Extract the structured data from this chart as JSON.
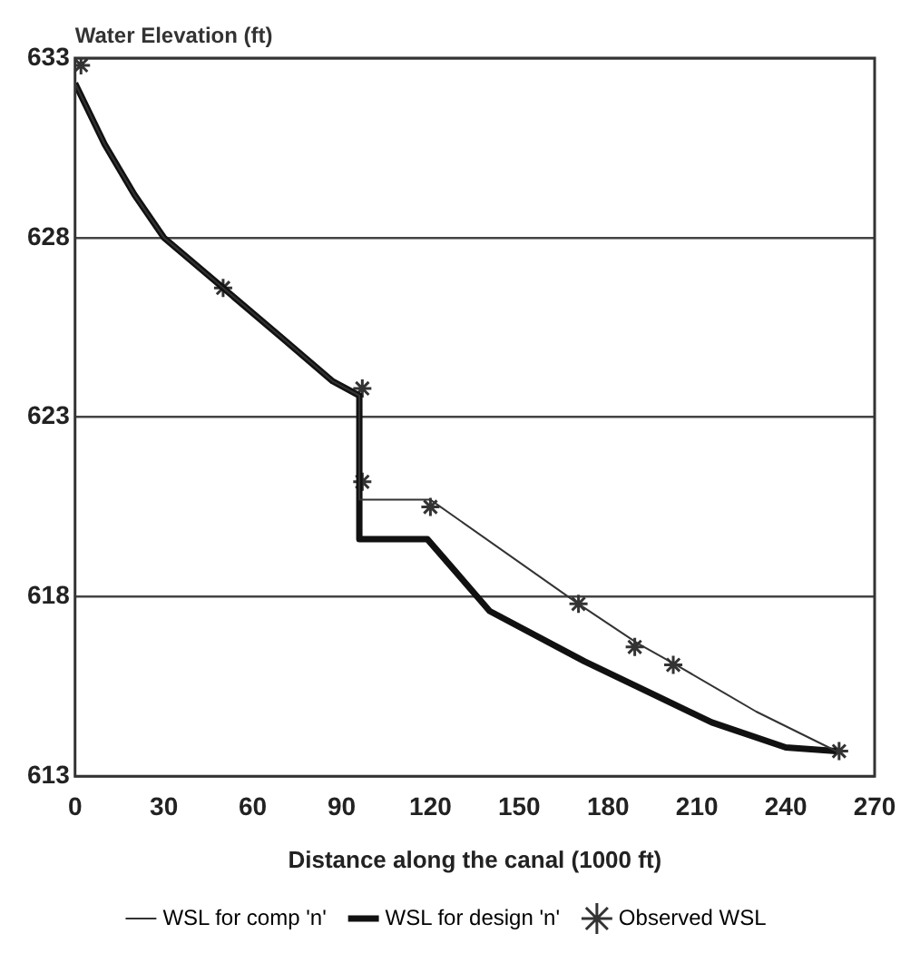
{
  "chart_data": {
    "type": "line",
    "ylabel": "Water Elevation (ft)",
    "xlabel": "Distance along the canal (1000 ft)",
    "xlim": [
      0,
      270
    ],
    "xticks": [
      0,
      30,
      60,
      90,
      120,
      150,
      180,
      210,
      240,
      270
    ],
    "ylim": [
      613,
      633
    ],
    "yticks": [
      613,
      618,
      623,
      628,
      633
    ],
    "grid": "y",
    "legend": "bottom",
    "marker": "none",
    "line_style": "solid",
    "series": [
      {
        "name": "WSL for comp 'n'",
        "color": "#333333",
        "x": [
          0,
          10,
          20,
          30,
          50,
          70,
          87,
          96,
          96,
          120,
          170,
          190,
          203,
          230,
          257
        ],
        "values": [
          632.3,
          630.6,
          629.2,
          628,
          626.6,
          625.2,
          624,
          623.6,
          620.7,
          620.7,
          617.8,
          616.7,
          616.1,
          614.8,
          613.7
        ]
      },
      {
        "name": "WSL for design 'n'",
        "color": "#111111",
        "x": [
          0,
          10,
          20,
          30,
          50,
          70,
          87,
          96,
          96,
          119,
          140,
          172,
          215,
          240,
          257
        ],
        "values": [
          632.3,
          630.6,
          629.2,
          628,
          626.6,
          625.2,
          624,
          623.6,
          619.6,
          619.6,
          617.6,
          616.2,
          614.5,
          613.8,
          613.7
        ]
      },
      {
        "name": "Observed WSL",
        "type": "scatter",
        "marker": "cross",
        "color": "#333333",
        "x": [
          2,
          50,
          97,
          97,
          120,
          170,
          189,
          202,
          258
        ],
        "values": [
          632.8,
          626.6,
          623.8,
          621.2,
          620.5,
          617.8,
          616.6,
          616.1,
          613.7
        ]
      }
    ]
  }
}
